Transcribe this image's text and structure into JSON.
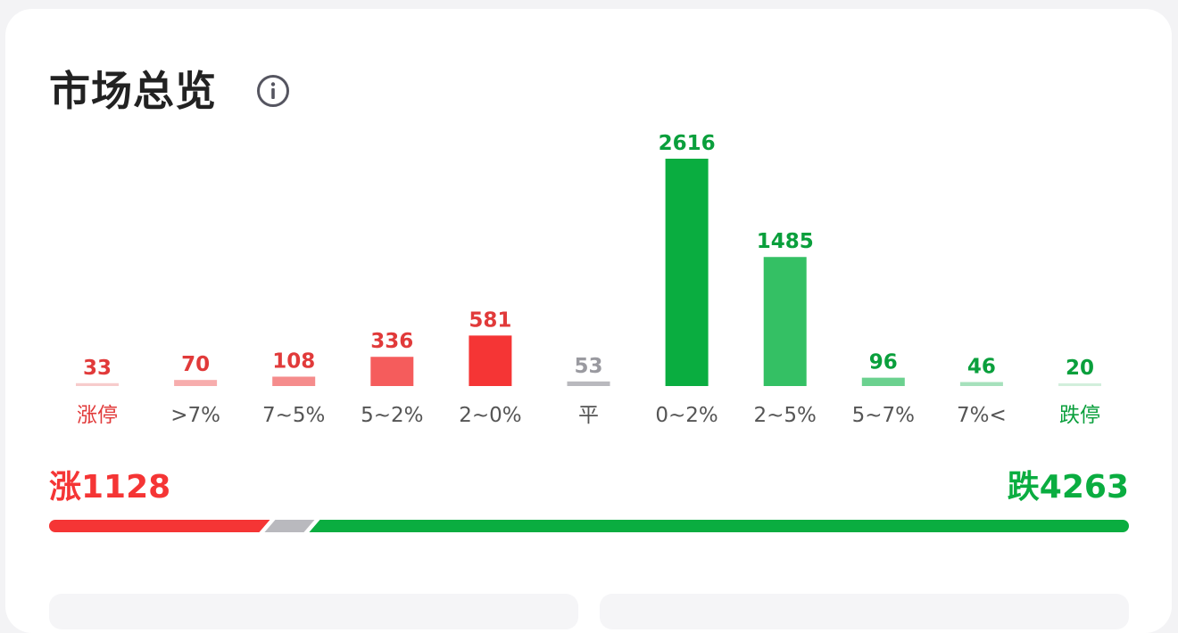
{
  "header": {
    "title": "市场总览",
    "info_icon": "info-icon"
  },
  "colors": {
    "up_strong": "#f53535",
    "up_1": "#f7c5c5",
    "up_2": "#f7a9a9",
    "up_3": "#f58888",
    "up_4": "#f55a5a",
    "flat": "#b9b9be",
    "flat_label": "#9a9aa0",
    "down_strong": "#0aad40",
    "down_2": "#34c064",
    "down_3": "#6bd18f",
    "down_4": "#a6e1bc",
    "down_5": "#d2efdc",
    "neutral_text": "#555555"
  },
  "chart_data": {
    "type": "bar",
    "categories": [
      "涨停",
      ">7%",
      "7~5%",
      "5~2%",
      "2~0%",
      "平",
      "0~2%",
      "2~5%",
      "5~7%",
      "7%<",
      "跌停"
    ],
    "values": [
      33,
      70,
      108,
      336,
      581,
      53,
      2616,
      1485,
      96,
      46,
      20
    ],
    "bar_colors": [
      "#f7cccc",
      "#f7adad",
      "#f58c8c",
      "#f55c5c",
      "#f53535",
      "#b9b9be",
      "#0aad40",
      "#34c064",
      "#6bd18f",
      "#a6e1bc",
      "#d2efdc"
    ],
    "value_colors": [
      "#e13a3a",
      "#e13a3a",
      "#e13a3a",
      "#e13a3a",
      "#e13a3a",
      "#9a9aa0",
      "#0a9f3c",
      "#0a9f3c",
      "#0a9f3c",
      "#0a9f3c",
      "#0a9f3c"
    ],
    "label_colors": [
      "#e13a3a",
      "#555555",
      "#555555",
      "#555555",
      "#555555",
      "#555555",
      "#555555",
      "#555555",
      "#555555",
      "#555555",
      "#0a9f3c"
    ],
    "title": "",
    "xlabel": "",
    "ylabel": "",
    "ylim": [
      0,
      2616
    ],
    "grid": false
  },
  "summary": {
    "up_label": "涨1128",
    "down_label": "跌4263",
    "up_count": 1128,
    "flat_count": 53,
    "down_count": 4263
  }
}
